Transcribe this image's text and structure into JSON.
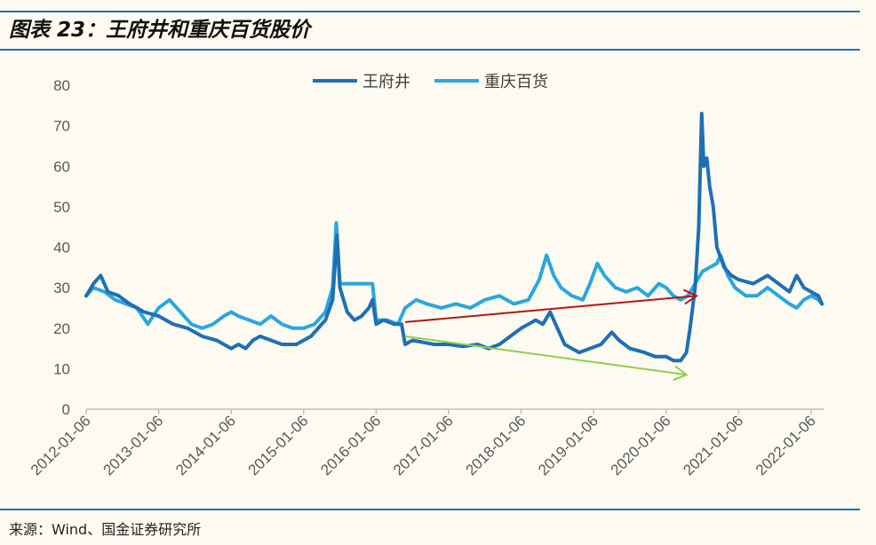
{
  "header": {
    "title": "图表 23：王府井和重庆百货股价"
  },
  "footer": {
    "source": "来源：Wind、国金证券研究所"
  },
  "chart_data": {
    "type": "line",
    "title": "图表 23：王府井和重庆百货股价",
    "xlabel": "",
    "ylabel": "",
    "ylim": [
      0,
      80
    ],
    "yticks": [
      0,
      10,
      20,
      30,
      40,
      50,
      60,
      70,
      80
    ],
    "xticks": [
      "2012-01-06",
      "2013-01-06",
      "2014-01-06",
      "2015-01-06",
      "2016-01-06",
      "2017-01-06",
      "2018-01-06",
      "2019-01-06",
      "2020-01-06",
      "2021-01-06",
      "2022-01-06"
    ],
    "grid": false,
    "legend": "top-center",
    "series": [
      {
        "name": "王府井",
        "color": "#1f6fb5",
        "points": [
          [
            2012.0,
            28
          ],
          [
            2012.1,
            31
          ],
          [
            2012.2,
            33
          ],
          [
            2012.3,
            29
          ],
          [
            2012.45,
            28
          ],
          [
            2012.6,
            26
          ],
          [
            2012.8,
            24
          ],
          [
            2013.0,
            23
          ],
          [
            2013.2,
            21
          ],
          [
            2013.4,
            20
          ],
          [
            2013.6,
            18
          ],
          [
            2013.8,
            17
          ],
          [
            2014.0,
            15
          ],
          [
            2014.1,
            16
          ],
          [
            2014.2,
            15
          ],
          [
            2014.3,
            17
          ],
          [
            2014.4,
            18
          ],
          [
            2014.55,
            17
          ],
          [
            2014.7,
            16
          ],
          [
            2014.9,
            16
          ],
          [
            2015.0,
            17
          ],
          [
            2015.1,
            18
          ],
          [
            2015.2,
            20
          ],
          [
            2015.3,
            22
          ],
          [
            2015.4,
            27
          ],
          [
            2015.46,
            43
          ],
          [
            2015.5,
            30
          ],
          [
            2015.6,
            24
          ],
          [
            2015.7,
            22
          ],
          [
            2015.8,
            23
          ],
          [
            2015.9,
            25
          ],
          [
            2015.95,
            27
          ],
          [
            2016.0,
            21
          ],
          [
            2016.1,
            22
          ],
          [
            2016.25,
            21
          ],
          [
            2016.35,
            21
          ],
          [
            2016.4,
            16
          ],
          [
            2016.5,
            17
          ],
          [
            2016.65,
            16.5
          ],
          [
            2016.8,
            16
          ],
          [
            2017.0,
            16
          ],
          [
            2017.2,
            15.5
          ],
          [
            2017.4,
            16
          ],
          [
            2017.55,
            15
          ],
          [
            2017.7,
            16
          ],
          [
            2017.85,
            18
          ],
          [
            2018.0,
            20
          ],
          [
            2018.1,
            21
          ],
          [
            2018.2,
            22
          ],
          [
            2018.3,
            21
          ],
          [
            2018.4,
            24
          ],
          [
            2018.5,
            20
          ],
          [
            2018.6,
            16
          ],
          [
            2018.7,
            15
          ],
          [
            2018.8,
            14
          ],
          [
            2018.95,
            15
          ],
          [
            2019.1,
            16
          ],
          [
            2019.25,
            19
          ],
          [
            2019.35,
            17
          ],
          [
            2019.5,
            15
          ],
          [
            2019.7,
            14
          ],
          [
            2019.85,
            13
          ],
          [
            2020.0,
            13
          ],
          [
            2020.1,
            12
          ],
          [
            2020.2,
            12
          ],
          [
            2020.28,
            14
          ],
          [
            2020.33,
            20
          ],
          [
            2020.4,
            30
          ],
          [
            2020.45,
            45
          ],
          [
            2020.49,
            73
          ],
          [
            2020.52,
            60
          ],
          [
            2020.56,
            62
          ],
          [
            2020.6,
            55
          ],
          [
            2020.65,
            50
          ],
          [
            2020.7,
            40
          ],
          [
            2020.8,
            35
          ],
          [
            2020.9,
            33
          ],
          [
            2021.0,
            32
          ],
          [
            2021.2,
            31
          ],
          [
            2021.4,
            33
          ],
          [
            2021.55,
            31
          ],
          [
            2021.7,
            29
          ],
          [
            2021.8,
            33
          ],
          [
            2021.9,
            30
          ],
          [
            2022.0,
            29
          ],
          [
            2022.1,
            28
          ],
          [
            2022.15,
            26
          ]
        ]
      },
      {
        "name": "重庆百货",
        "color": "#2aa7e0",
        "points": [
          [
            2012.0,
            28
          ],
          [
            2012.1,
            30
          ],
          [
            2012.25,
            29
          ],
          [
            2012.4,
            27
          ],
          [
            2012.55,
            26
          ],
          [
            2012.7,
            25
          ],
          [
            2012.85,
            21
          ],
          [
            2013.0,
            25
          ],
          [
            2013.15,
            27
          ],
          [
            2013.3,
            24
          ],
          [
            2013.45,
            21
          ],
          [
            2013.6,
            20
          ],
          [
            2013.75,
            21
          ],
          [
            2013.9,
            23
          ],
          [
            2014.0,
            24
          ],
          [
            2014.1,
            23
          ],
          [
            2014.25,
            22
          ],
          [
            2014.4,
            21
          ],
          [
            2014.55,
            23
          ],
          [
            2014.7,
            21
          ],
          [
            2014.85,
            20
          ],
          [
            2015.0,
            20
          ],
          [
            2015.15,
            21
          ],
          [
            2015.3,
            24
          ],
          [
            2015.4,
            30
          ],
          [
            2015.45,
            46
          ],
          [
            2015.5,
            31
          ],
          [
            2015.6,
            31
          ],
          [
            2015.8,
            31
          ],
          [
            2015.95,
            31
          ],
          [
            2016.0,
            22
          ],
          [
            2016.15,
            22
          ],
          [
            2016.3,
            21
          ],
          [
            2016.4,
            25
          ],
          [
            2016.55,
            27
          ],
          [
            2016.7,
            26
          ],
          [
            2016.9,
            25
          ],
          [
            2017.1,
            26
          ],
          [
            2017.3,
            25
          ],
          [
            2017.5,
            27
          ],
          [
            2017.7,
            28
          ],
          [
            2017.9,
            26
          ],
          [
            2018.1,
            27
          ],
          [
            2018.25,
            32
          ],
          [
            2018.35,
            38
          ],
          [
            2018.45,
            33
          ],
          [
            2018.55,
            30
          ],
          [
            2018.7,
            28
          ],
          [
            2018.85,
            27
          ],
          [
            2018.95,
            31
          ],
          [
            2019.05,
            36
          ],
          [
            2019.15,
            33
          ],
          [
            2019.3,
            30
          ],
          [
            2019.45,
            29
          ],
          [
            2019.6,
            30
          ],
          [
            2019.75,
            28
          ],
          [
            2019.9,
            31
          ],
          [
            2020.0,
            30
          ],
          [
            2020.1,
            28
          ],
          [
            2020.2,
            27
          ],
          [
            2020.3,
            28
          ],
          [
            2020.4,
            31
          ],
          [
            2020.5,
            34
          ],
          [
            2020.6,
            35
          ],
          [
            2020.7,
            36
          ],
          [
            2020.75,
            38
          ],
          [
            2020.85,
            33
          ],
          [
            2020.95,
            30
          ],
          [
            2021.1,
            28
          ],
          [
            2021.25,
            28
          ],
          [
            2021.4,
            30
          ],
          [
            2021.55,
            28
          ],
          [
            2021.7,
            26
          ],
          [
            2021.8,
            25
          ],
          [
            2021.9,
            27
          ],
          [
            2022.0,
            28
          ],
          [
            2022.1,
            27
          ],
          [
            2022.15,
            26
          ]
        ]
      }
    ],
    "annotations": [
      {
        "type": "arrow",
        "color": "#b01818",
        "from": [
          2016.4,
          21.5
        ],
        "to": [
          2020.42,
          28
        ]
      },
      {
        "type": "arrow",
        "color": "#8fce4a",
        "from": [
          2016.4,
          18
        ],
        "to": [
          2020.28,
          8.5
        ]
      }
    ]
  }
}
